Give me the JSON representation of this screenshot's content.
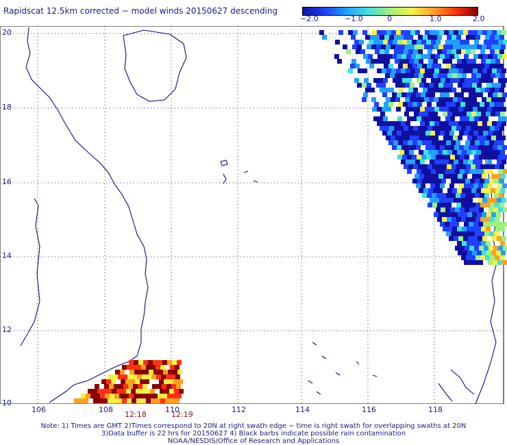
{
  "title": "Rapidscat 12.5km corrected − model winds 20150627 descending",
  "colorbar": {
    "stops": [
      "#1010a0",
      "#2040ff",
      "#20a0ff",
      "#40e0e0",
      "#a0f080",
      "#f8f040",
      "#ffa020",
      "#ff3010",
      "#8a0000"
    ],
    "labels": [
      "−2.0",
      "−1.0",
      "0",
      "1.0",
      "2.0"
    ],
    "range": [
      -2.0,
      2.0
    ]
  },
  "axes": {
    "x_ticks": [
      "106",
      "108",
      "110",
      "112",
      "114",
      "116",
      "118"
    ],
    "y_ticks": [
      "20",
      "18",
      "16",
      "14",
      "12",
      "10"
    ],
    "lon_range": [
      105.2,
      119.9
    ],
    "lat_range": [
      10.0,
      20.0
    ]
  },
  "swath_times": [
    "12:18",
    "12:19"
  ],
  "notes": [
    "Note: 1) Times are GMT 2)Times correspond to 20N at right swath edge − time is right swath for overlapping swaths at 20N",
    "3)Data buffer is 22 hrs for 20150627 4) Black barbs indicate possible rain contamination",
    "NOAA/NESDIS/Office of Research and Applications"
  ]
}
